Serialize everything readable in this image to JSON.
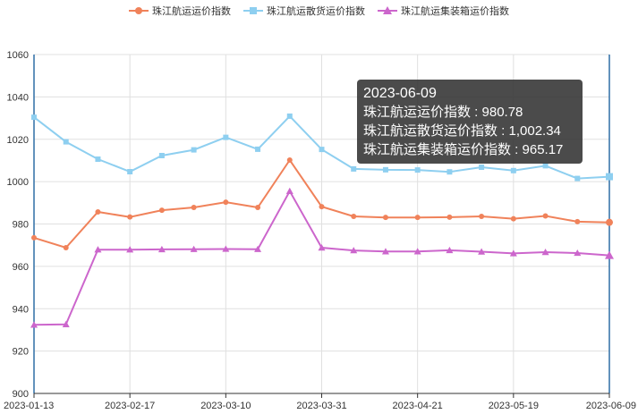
{
  "legend": {
    "items": [
      {
        "label": "珠江航运运价指数",
        "color": "#f0825a",
        "marker": "circle"
      },
      {
        "label": "珠江航运散货运价指数",
        "color": "#8ecff0",
        "marker": "square"
      },
      {
        "label": "珠江航运集装箱运价指数",
        "color": "#cc66cc",
        "marker": "triangle"
      }
    ]
  },
  "tooltip": {
    "date": "2023-06-09",
    "line1": "珠江航运运价指数 : 980.78",
    "line2": "珠江航运散货运价指数 : 1,002.34",
    "line3": "珠江航运集装箱运价指数 : 965.17"
  },
  "chart_data": {
    "type": "line",
    "title": "",
    "xlabel": "",
    "ylabel": "",
    "ylim": [
      900,
      1060
    ],
    "yticks": [
      900,
      920,
      940,
      960,
      980,
      1000,
      1020,
      1040,
      1060
    ],
    "x": [
      "2023-01-13",
      "2023-01-20",
      "2023-02-03",
      "2023-02-17",
      "2023-02-24",
      "2023-03-03",
      "2023-03-10",
      "2023-03-17",
      "2023-03-24",
      "2023-03-31",
      "2023-04-07",
      "2023-04-14",
      "2023-04-21",
      "2023-04-28",
      "2023-05-05",
      "2023-05-19",
      "2023-05-26",
      "2023-06-02",
      "2023-06-09"
    ],
    "xticks": [
      "2023-01-13",
      "2023-02-17",
      "2023-03-10",
      "2023-03-31",
      "2023-04-21",
      "2023-05-19",
      "2023-06-09"
    ],
    "grid": true,
    "legend_position": "top",
    "series": [
      {
        "name": "珠江航运运价指数",
        "color": "#f0825a",
        "marker": "circle",
        "values": [
          973.5,
          968.8,
          985.7,
          983.3,
          986.5,
          987.8,
          990.3,
          987.8,
          1010.2,
          988.2,
          983.6,
          983.1,
          983.1,
          983.2,
          983.6,
          982.5,
          983.8,
          981.1,
          980.78
        ]
      },
      {
        "name": "珠江航运散货运价指数",
        "color": "#8ecff0",
        "marker": "square",
        "values": [
          1030.4,
          1018.8,
          1010.6,
          1004.7,
          1012.3,
          1015.0,
          1020.9,
          1015.3,
          1030.9,
          1015.2,
          1006.0,
          1005.6,
          1005.5,
          1004.6,
          1006.8,
          1005.2,
          1007.5,
          1001.5,
          1002.34
        ]
      },
      {
        "name": "珠江航运集装箱运价指数",
        "color": "#cc66cc",
        "marker": "triangle",
        "values": [
          932.4,
          932.6,
          967.9,
          967.9,
          968.0,
          968.1,
          968.2,
          968.1,
          995.5,
          968.8,
          967.5,
          967.0,
          967.0,
          967.6,
          966.9,
          966.1,
          966.7,
          966.3,
          965.17
        ]
      }
    ]
  }
}
